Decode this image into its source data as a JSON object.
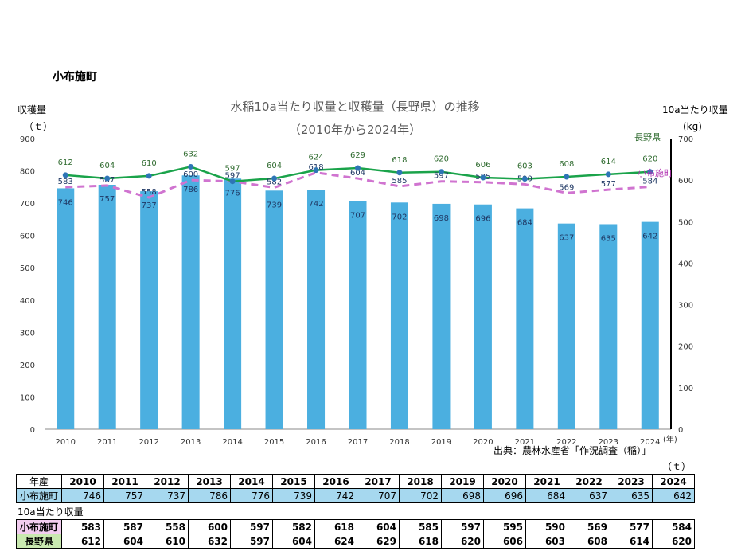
{
  "page": {
    "heading": "小布施町",
    "source": "出典：農林水産省「作況調査（稲）」",
    "unit_t": "（ｔ）",
    "yield_caption": "10a当たり収量"
  },
  "chart_data": {
    "type": "bar",
    "title": "水稲10a当たり収量と収穫量（長野県）の推移",
    "subtitle": "（2010年から2024年）",
    "categories": [
      "2010",
      "2011",
      "2012",
      "2013",
      "2014",
      "2015",
      "2016",
      "2017",
      "2018",
      "2019",
      "2020",
      "2021",
      "2022",
      "2023",
      "2024"
    ],
    "x_unit": "(年)",
    "left_axis": {
      "label": "収穫量",
      "unit": "（ｔ）",
      "min": 0,
      "max": 900,
      "ticks": [
        0,
        100,
        200,
        300,
        400,
        500,
        600,
        700,
        800,
        900
      ]
    },
    "right_axis": {
      "label": "10a当たり収量",
      "unit": "(kg)",
      "min": 0,
      "max": 700,
      "ticks": [
        0,
        100,
        200,
        300,
        400,
        500,
        600,
        700
      ]
    },
    "series": [
      {
        "name": "",
        "kind": "bar",
        "axis": "left",
        "color": "#4bafe0",
        "values": [
          746,
          757,
          737,
          786,
          776,
          739,
          742,
          707,
          702,
          698,
          696,
          684,
          637,
          635,
          642
        ]
      },
      {
        "name": "小布施町",
        "kind": "dashed-line",
        "axis": "right",
        "color": "#d074d0",
        "values": [
          583,
          587,
          558,
          600,
          597,
          582,
          618,
          604,
          585,
          597,
          595,
          590,
          569,
          577,
          584
        ]
      },
      {
        "name": "長野県",
        "kind": "line",
        "axis": "right",
        "color": "#1aa34a",
        "values": [
          612,
          604,
          610,
          632,
          597,
          604,
          624,
          629,
          618,
          620,
          606,
          603,
          608,
          614,
          620
        ]
      }
    ],
    "grid": false
  },
  "table": {
    "year_header": "年産",
    "harvest_label": "小布施町",
    "town_label": "小布施町",
    "pref_label": "長野県"
  }
}
